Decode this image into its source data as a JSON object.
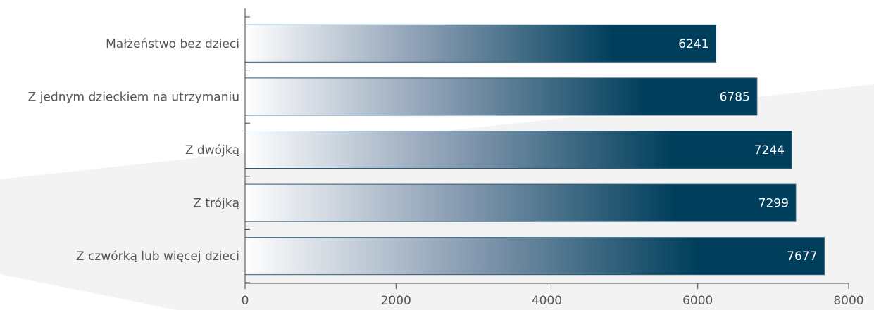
{
  "chart_data": {
    "type": "bar",
    "orientation": "horizontal",
    "title": "",
    "xlabel": "",
    "ylabel": "",
    "categories": [
      "Małżeństwo bez dzieci",
      "Z jednym dzieckiem na utrzymaniu",
      "Z dwójką",
      "Z trójką",
      "Z czwórką lub więcej dzieci"
    ],
    "values": [
      6241,
      6785,
      7244,
      7299,
      7677
    ],
    "data_labels": [
      "6241",
      "6785",
      "7244",
      "7299",
      "7677"
    ],
    "xlim": [
      0,
      8000
    ],
    "ticks": [
      0,
      2000,
      4000,
      6000,
      8000
    ],
    "tick_labels": [
      "0",
      "2000",
      "4000",
      "6000",
      "8000"
    ],
    "grid": false,
    "legend": "none",
    "colors": {
      "bar_start": "#ffffff",
      "bar_mid": "#8a9db3",
      "bar_end": "#003f5c",
      "bar_stroke": "#2a5a78",
      "axis": "#444444",
      "watermark": "#f3f3f3"
    }
  }
}
